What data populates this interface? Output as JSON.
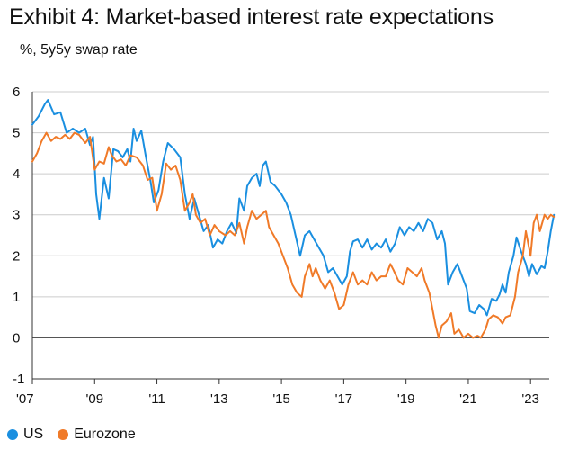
{
  "title": "Exhibit 4: Market-based interest rate expectations",
  "subtitle": "%, 5y5y swap rate",
  "legend": {
    "us_label": "US",
    "eurozone_label": "Eurozone"
  },
  "colors": {
    "us": "#1a8fe0",
    "eurozone": "#f07a28",
    "grid": "#cccccc",
    "zero_line": "#555555",
    "axis": "#333333"
  },
  "chart_data": {
    "type": "line",
    "title": "Exhibit 4: Market-based interest rate expectations",
    "ylabel": "%, 5y5y swap rate",
    "xlabel": "",
    "xlim": [
      2007.0,
      2023.6
    ],
    "ylim": [
      -1,
      6
    ],
    "y_ticks": [
      -1,
      0,
      1,
      2,
      3,
      4,
      5,
      6
    ],
    "x_ticks": [
      {
        "value": 2007,
        "label": "'07"
      },
      {
        "value": 2009,
        "label": "'09"
      },
      {
        "value": 2011,
        "label": "'11"
      },
      {
        "value": 2013,
        "label": "'13"
      },
      {
        "value": 2015,
        "label": "'15"
      },
      {
        "value": 2017,
        "label": "'17"
      },
      {
        "value": 2019,
        "label": "'19"
      },
      {
        "value": 2021,
        "label": "'21"
      },
      {
        "value": 2023,
        "label": "'23"
      }
    ],
    "series": [
      {
        "name": "US",
        "points": [
          [
            2007.0,
            5.2
          ],
          [
            2007.2,
            5.4
          ],
          [
            2007.4,
            5.7
          ],
          [
            2007.5,
            5.8
          ],
          [
            2007.7,
            5.45
          ],
          [
            2007.9,
            5.5
          ],
          [
            2008.1,
            5.0
          ],
          [
            2008.3,
            5.1
          ],
          [
            2008.5,
            5.0
          ],
          [
            2008.7,
            5.1
          ],
          [
            2008.85,
            4.7
          ],
          [
            2008.95,
            4.9
          ],
          [
            2009.05,
            3.5
          ],
          [
            2009.15,
            2.9
          ],
          [
            2009.3,
            3.9
          ],
          [
            2009.45,
            3.4
          ],
          [
            2009.6,
            4.6
          ],
          [
            2009.75,
            4.55
          ],
          [
            2009.9,
            4.4
          ],
          [
            2010.05,
            4.6
          ],
          [
            2010.15,
            4.3
          ],
          [
            2010.25,
            5.1
          ],
          [
            2010.35,
            4.8
          ],
          [
            2010.5,
            5.05
          ],
          [
            2010.65,
            4.4
          ],
          [
            2010.8,
            3.8
          ],
          [
            2010.9,
            3.3
          ],
          [
            2011.05,
            3.6
          ],
          [
            2011.2,
            4.3
          ],
          [
            2011.35,
            4.75
          ],
          [
            2011.55,
            4.6
          ],
          [
            2011.75,
            4.4
          ],
          [
            2011.9,
            3.5
          ],
          [
            2012.05,
            2.9
          ],
          [
            2012.2,
            3.4
          ],
          [
            2012.35,
            3.0
          ],
          [
            2012.5,
            2.6
          ],
          [
            2012.65,
            2.75
          ],
          [
            2012.8,
            2.2
          ],
          [
            2012.95,
            2.4
          ],
          [
            2013.1,
            2.3
          ],
          [
            2013.25,
            2.6
          ],
          [
            2013.4,
            2.8
          ],
          [
            2013.55,
            2.55
          ],
          [
            2013.65,
            3.4
          ],
          [
            2013.8,
            3.1
          ],
          [
            2013.9,
            3.7
          ],
          [
            2014.05,
            3.9
          ],
          [
            2014.2,
            4.0
          ],
          [
            2014.3,
            3.7
          ],
          [
            2014.4,
            4.2
          ],
          [
            2014.5,
            4.3
          ],
          [
            2014.65,
            3.8
          ],
          [
            2014.8,
            3.7
          ],
          [
            2015.0,
            3.5
          ],
          [
            2015.15,
            3.3
          ],
          [
            2015.3,
            3.0
          ],
          [
            2015.45,
            2.5
          ],
          [
            2015.6,
            2.0
          ],
          [
            2015.75,
            2.5
          ],
          [
            2015.9,
            2.6
          ],
          [
            2016.05,
            2.4
          ],
          [
            2016.2,
            2.2
          ],
          [
            2016.35,
            2.0
          ],
          [
            2016.5,
            1.6
          ],
          [
            2016.65,
            1.7
          ],
          [
            2016.8,
            1.5
          ],
          [
            2016.95,
            1.3
          ],
          [
            2017.1,
            1.5
          ],
          [
            2017.2,
            2.1
          ],
          [
            2017.3,
            2.35
          ],
          [
            2017.45,
            2.4
          ],
          [
            2017.6,
            2.2
          ],
          [
            2017.75,
            2.4
          ],
          [
            2017.9,
            2.15
          ],
          [
            2018.05,
            2.3
          ],
          [
            2018.2,
            2.2
          ],
          [
            2018.35,
            2.4
          ],
          [
            2018.5,
            2.1
          ],
          [
            2018.65,
            2.3
          ],
          [
            2018.8,
            2.7
          ],
          [
            2018.95,
            2.5
          ],
          [
            2019.1,
            2.7
          ],
          [
            2019.25,
            2.6
          ],
          [
            2019.4,
            2.8
          ],
          [
            2019.55,
            2.6
          ],
          [
            2019.7,
            2.9
          ],
          [
            2019.85,
            2.8
          ],
          [
            2020.0,
            2.4
          ],
          [
            2020.15,
            2.6
          ],
          [
            2020.25,
            2.3
          ],
          [
            2020.35,
            1.3
          ],
          [
            2020.5,
            1.6
          ],
          [
            2020.65,
            1.8
          ],
          [
            2020.8,
            1.5
          ],
          [
            2020.95,
            1.2
          ],
          [
            2021.05,
            0.65
          ],
          [
            2021.2,
            0.6
          ],
          [
            2021.35,
            0.8
          ],
          [
            2021.5,
            0.7
          ],
          [
            2021.6,
            0.55
          ],
          [
            2021.75,
            0.95
          ],
          [
            2021.9,
            0.9
          ],
          [
            2022.0,
            1.05
          ],
          [
            2022.1,
            1.3
          ],
          [
            2022.2,
            1.1
          ],
          [
            2022.3,
            1.6
          ],
          [
            2022.45,
            2.0
          ],
          [
            2022.55,
            2.45
          ],
          [
            2022.7,
            2.1
          ],
          [
            2022.85,
            1.8
          ],
          [
            2022.95,
            1.5
          ],
          [
            2023.05,
            1.8
          ],
          [
            2023.2,
            1.55
          ],
          [
            2023.35,
            1.75
          ],
          [
            2023.45,
            1.7
          ],
          [
            2023.55,
            2.1
          ],
          [
            2023.65,
            2.6
          ],
          [
            2023.75,
            3.0
          ]
        ]
      },
      {
        "name": "Eurozone",
        "points": [
          [
            2007.0,
            4.3
          ],
          [
            2007.15,
            4.5
          ],
          [
            2007.3,
            4.8
          ],
          [
            2007.45,
            5.0
          ],
          [
            2007.6,
            4.8
          ],
          [
            2007.75,
            4.9
          ],
          [
            2007.9,
            4.85
          ],
          [
            2008.05,
            4.95
          ],
          [
            2008.2,
            4.85
          ],
          [
            2008.35,
            5.0
          ],
          [
            2008.5,
            4.95
          ],
          [
            2008.7,
            4.75
          ],
          [
            2008.85,
            4.9
          ],
          [
            2009.0,
            4.1
          ],
          [
            2009.15,
            4.3
          ],
          [
            2009.3,
            4.25
          ],
          [
            2009.45,
            4.65
          ],
          [
            2009.55,
            4.45
          ],
          [
            2009.7,
            4.3
          ],
          [
            2009.85,
            4.35
          ],
          [
            2010.0,
            4.2
          ],
          [
            2010.15,
            4.45
          ],
          [
            2010.35,
            4.4
          ],
          [
            2010.55,
            4.2
          ],
          [
            2010.7,
            3.85
          ],
          [
            2010.85,
            3.9
          ],
          [
            2011.0,
            3.1
          ],
          [
            2011.15,
            3.5
          ],
          [
            2011.3,
            4.25
          ],
          [
            2011.45,
            4.1
          ],
          [
            2011.6,
            4.2
          ],
          [
            2011.75,
            3.85
          ],
          [
            2011.9,
            3.1
          ],
          [
            2012.05,
            3.3
          ],
          [
            2012.15,
            3.5
          ],
          [
            2012.25,
            3.0
          ],
          [
            2012.4,
            2.8
          ],
          [
            2012.55,
            2.9
          ],
          [
            2012.7,
            2.5
          ],
          [
            2012.85,
            2.75
          ],
          [
            2013.0,
            2.6
          ],
          [
            2013.2,
            2.5
          ],
          [
            2013.35,
            2.6
          ],
          [
            2013.5,
            2.5
          ],
          [
            2013.65,
            2.8
          ],
          [
            2013.8,
            2.3
          ],
          [
            2013.9,
            2.7
          ],
          [
            2014.05,
            3.1
          ],
          [
            2014.2,
            2.9
          ],
          [
            2014.35,
            3.0
          ],
          [
            2014.5,
            3.1
          ],
          [
            2014.6,
            2.7
          ],
          [
            2014.75,
            2.5
          ],
          [
            2014.9,
            2.3
          ],
          [
            2015.05,
            2.0
          ],
          [
            2015.2,
            1.7
          ],
          [
            2015.35,
            1.3
          ],
          [
            2015.5,
            1.1
          ],
          [
            2015.65,
            1.0
          ],
          [
            2015.75,
            1.5
          ],
          [
            2015.9,
            1.8
          ],
          [
            2016.0,
            1.5
          ],
          [
            2016.1,
            1.7
          ],
          [
            2016.25,
            1.4
          ],
          [
            2016.4,
            1.2
          ],
          [
            2016.55,
            1.4
          ],
          [
            2016.7,
            1.1
          ],
          [
            2016.85,
            0.7
          ],
          [
            2017.0,
            0.8
          ],
          [
            2017.15,
            1.3
          ],
          [
            2017.3,
            1.6
          ],
          [
            2017.45,
            1.3
          ],
          [
            2017.6,
            1.4
          ],
          [
            2017.75,
            1.3
          ],
          [
            2017.9,
            1.6
          ],
          [
            2018.05,
            1.4
          ],
          [
            2018.2,
            1.5
          ],
          [
            2018.35,
            1.5
          ],
          [
            2018.5,
            1.8
          ],
          [
            2018.6,
            1.65
          ],
          [
            2018.75,
            1.4
          ],
          [
            2018.9,
            1.3
          ],
          [
            2019.05,
            1.7
          ],
          [
            2019.2,
            1.6
          ],
          [
            2019.35,
            1.5
          ],
          [
            2019.5,
            1.7
          ],
          [
            2019.6,
            1.4
          ],
          [
            2019.75,
            1.1
          ],
          [
            2019.85,
            0.7
          ],
          [
            2019.95,
            0.3
          ],
          [
            2020.05,
            0.0
          ],
          [
            2020.15,
            0.3
          ],
          [
            2020.3,
            0.4
          ],
          [
            2020.45,
            0.6
          ],
          [
            2020.55,
            0.1
          ],
          [
            2020.7,
            0.2
          ],
          [
            2020.85,
            0.0
          ],
          [
            2021.0,
            0.1
          ],
          [
            2021.15,
            0.0
          ],
          [
            2021.3,
            0.05
          ],
          [
            2021.4,
            0.0
          ],
          [
            2021.55,
            0.2
          ],
          [
            2021.65,
            0.45
          ],
          [
            2021.8,
            0.55
          ],
          [
            2021.95,
            0.5
          ],
          [
            2022.1,
            0.35
          ],
          [
            2022.2,
            0.5
          ],
          [
            2022.35,
            0.55
          ],
          [
            2022.5,
            1.0
          ],
          [
            2022.6,
            1.6
          ],
          [
            2022.75,
            2.0
          ],
          [
            2022.85,
            2.6
          ],
          [
            2023.0,
            2.0
          ],
          [
            2023.1,
            2.8
          ],
          [
            2023.2,
            3.0
          ],
          [
            2023.3,
            2.6
          ],
          [
            2023.45,
            3.0
          ],
          [
            2023.55,
            2.9
          ],
          [
            2023.65,
            3.0
          ],
          [
            2023.75,
            2.95
          ]
        ]
      }
    ]
  }
}
